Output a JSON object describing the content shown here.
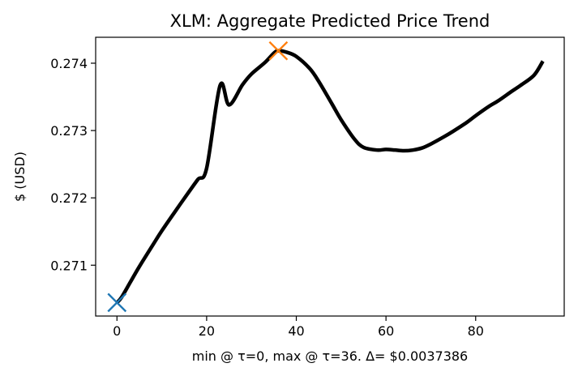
{
  "chart_data": {
    "type": "line",
    "title": "XLM: Aggregate Predicted Price Trend",
    "xlabel": "min @ τ=0, max @ τ=36. Δ= $0.0037386",
    "ylabel": "$ (USD)",
    "xlim": [
      -4.75,
      99.75
    ],
    "ylim": [
      0.270245,
      0.274385
    ],
    "xticks": [
      0,
      20,
      40,
      60,
      80
    ],
    "xtick_labels": [
      "0",
      "20",
      "40",
      "60",
      "80"
    ],
    "yticks": [
      0.271,
      0.272,
      0.273,
      0.274
    ],
    "ytick_labels": [
      "0.271",
      "0.272",
      "0.273",
      "0.274"
    ],
    "grid": false,
    "series": [
      {
        "color": "#000000",
        "x": [
          0,
          1,
          3,
          5,
          8,
          10,
          13,
          15,
          18,
          20,
          23,
          25,
          28,
          30,
          33,
          35,
          36,
          38,
          40,
          43,
          45,
          48,
          50,
          53,
          55,
          58,
          60,
          62,
          64,
          66,
          68,
          70,
          73,
          75,
          78,
          80,
          83,
          85,
          88,
          90,
          93,
          95
        ],
        "y": [
          0.270445,
          0.27052,
          0.27075,
          0.27098,
          0.2713,
          0.27151,
          0.2718,
          0.27199,
          0.27227,
          0.27244,
          0.27367,
          0.27338,
          0.27368,
          0.27384,
          0.27401,
          0.27415,
          0.274184,
          0.27416,
          0.2741,
          0.27392,
          0.27373,
          0.27339,
          0.27316,
          0.27287,
          0.27275,
          0.27271,
          0.27272,
          0.27271,
          0.2727,
          0.27271,
          0.27274,
          0.2728,
          0.27291,
          0.27299,
          0.27312,
          0.27322,
          0.27336,
          0.27344,
          0.27358,
          0.27367,
          0.27382,
          0.27403
        ]
      }
    ],
    "markers": [
      {
        "label": "min",
        "x": 0,
        "y": 0.270445,
        "symbol": "x",
        "color": "#1f77b4"
      },
      {
        "label": "max",
        "x": 36,
        "y": 0.274184,
        "symbol": "x",
        "color": "#ff7f0e"
      }
    ]
  }
}
